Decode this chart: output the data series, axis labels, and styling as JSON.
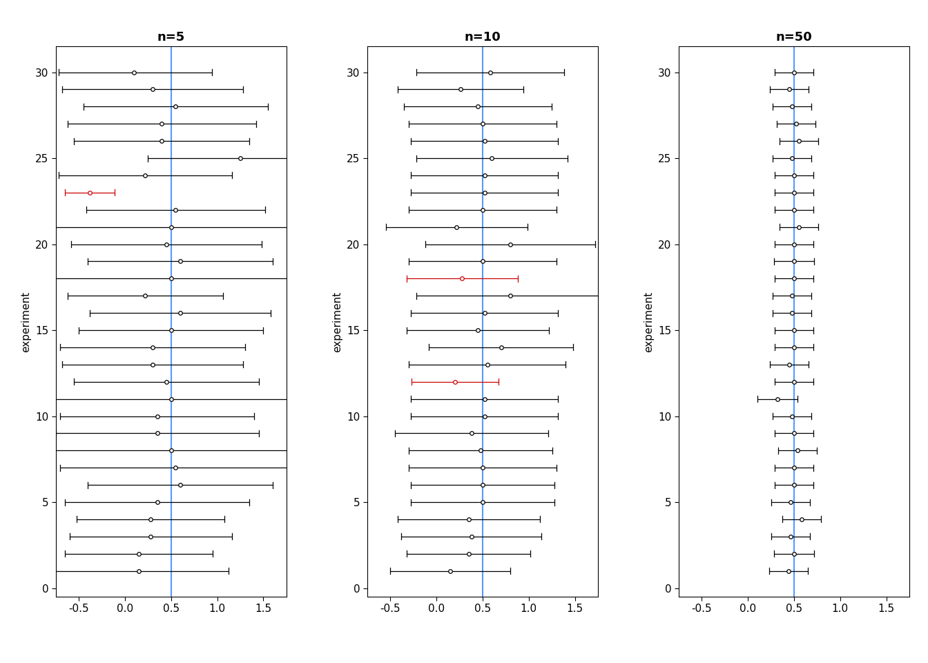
{
  "true_beta": 0.5,
  "n_experiments": 30,
  "panels": [
    {
      "title": "n=5",
      "estimates": [
        0.15,
        0.15,
        0.28,
        0.28,
        0.35,
        0.6,
        0.55,
        0.5,
        0.35,
        0.35,
        0.5,
        0.45,
        0.3,
        0.3,
        0.5,
        0.6,
        0.22,
        0.5,
        0.6,
        0.45,
        0.5,
        0.55,
        -0.38,
        0.22,
        1.25,
        0.4,
        0.4,
        0.55,
        0.3,
        0.1
      ],
      "lower": [
        -0.82,
        -0.65,
        -0.6,
        -0.52,
        -0.65,
        -0.4,
        -0.7,
        -0.85,
        -0.75,
        -0.7,
        -0.8,
        -0.55,
        -0.68,
        -0.7,
        -0.5,
        -0.38,
        -0.62,
        -0.8,
        -0.4,
        -0.58,
        -0.8,
        -0.42,
        -0.65,
        -0.72,
        0.25,
        -0.55,
        -0.62,
        -0.45,
        -0.68,
        -0.72
      ],
      "upper": [
        1.12,
        0.95,
        1.16,
        1.08,
        1.35,
        1.6,
        1.8,
        1.85,
        1.45,
        1.4,
        1.8,
        1.45,
        1.28,
        1.3,
        1.5,
        1.58,
        1.06,
        1.8,
        1.6,
        1.48,
        1.8,
        1.52,
        -0.11,
        1.16,
        2.25,
        1.35,
        1.42,
        1.55,
        1.28,
        0.94
      ],
      "red_indices": [
        22
      ]
    },
    {
      "title": "n=10",
      "estimates": [
        0.15,
        0.35,
        0.38,
        0.35,
        0.5,
        0.5,
        0.5,
        0.48,
        0.38,
        0.52,
        0.52,
        0.2,
        0.55,
        0.7,
        0.45,
        0.52,
        0.8,
        0.28,
        0.5,
        0.8,
        0.22,
        0.5,
        0.52,
        0.52,
        0.6,
        0.52,
        0.5,
        0.45,
        0.26,
        0.58
      ],
      "lower": [
        -0.5,
        -0.32,
        -0.38,
        -0.42,
        -0.28,
        -0.28,
        -0.3,
        -0.3,
        -0.45,
        -0.28,
        -0.28,
        -0.27,
        -0.3,
        -0.08,
        -0.32,
        -0.28,
        -0.22,
        -0.32,
        -0.3,
        -0.12,
        -0.55,
        -0.3,
        -0.28,
        -0.28,
        -0.22,
        -0.28,
        -0.3,
        -0.35,
        -0.42,
        -0.22
      ],
      "upper": [
        0.8,
        1.02,
        1.14,
        1.12,
        1.28,
        1.28,
        1.3,
        1.26,
        1.21,
        1.32,
        1.32,
        0.67,
        1.4,
        1.48,
        1.22,
        1.32,
        1.82,
        0.88,
        1.3,
        1.72,
        0.99,
        1.3,
        1.32,
        1.32,
        1.42,
        1.32,
        1.3,
        1.25,
        0.94,
        1.38
      ],
      "red_indices": [
        11,
        17
      ]
    },
    {
      "title": "n=50",
      "estimates": [
        0.44,
        0.5,
        0.46,
        0.58,
        0.46,
        0.5,
        0.5,
        0.54,
        0.5,
        0.48,
        0.32,
        0.5,
        0.45,
        0.5,
        0.5,
        0.48,
        0.48,
        0.5,
        0.5,
        0.5,
        0.55,
        0.5,
        0.5,
        0.5,
        0.48,
        0.55,
        0.52,
        0.48,
        0.45,
        0.5
      ],
      "lower": [
        0.23,
        0.28,
        0.25,
        0.37,
        0.25,
        0.29,
        0.29,
        0.33,
        0.29,
        0.27,
        0.1,
        0.29,
        0.24,
        0.29,
        0.29,
        0.27,
        0.27,
        0.29,
        0.28,
        0.29,
        0.34,
        0.29,
        0.29,
        0.29,
        0.27,
        0.34,
        0.31,
        0.27,
        0.24,
        0.29
      ],
      "upper": [
        0.65,
        0.72,
        0.67,
        0.79,
        0.67,
        0.71,
        0.71,
        0.75,
        0.71,
        0.69,
        0.54,
        0.71,
        0.66,
        0.71,
        0.71,
        0.69,
        0.69,
        0.71,
        0.72,
        0.71,
        0.76,
        0.71,
        0.71,
        0.71,
        0.69,
        0.76,
        0.73,
        0.69,
        0.66,
        0.71
      ],
      "red_indices": []
    }
  ],
  "xlim": [
    -0.75,
    1.75
  ],
  "xticks": [
    -0.5,
    0.0,
    0.5,
    1.0,
    1.5
  ],
  "ylim": [
    -0.5,
    31.5
  ],
  "yticks": [
    0,
    5,
    10,
    15,
    20,
    25,
    30
  ],
  "ylabel": "experiment",
  "true_line_color": "#5599ff",
  "black_color": "#000000",
  "red_color": "#cc0000",
  "bg_color": "#ffffff",
  "title_fontsize": 13,
  "axis_fontsize": 11,
  "tick_fontsize": 11,
  "figsize": [
    13.44,
    9.6
  ],
  "dpi": 100
}
